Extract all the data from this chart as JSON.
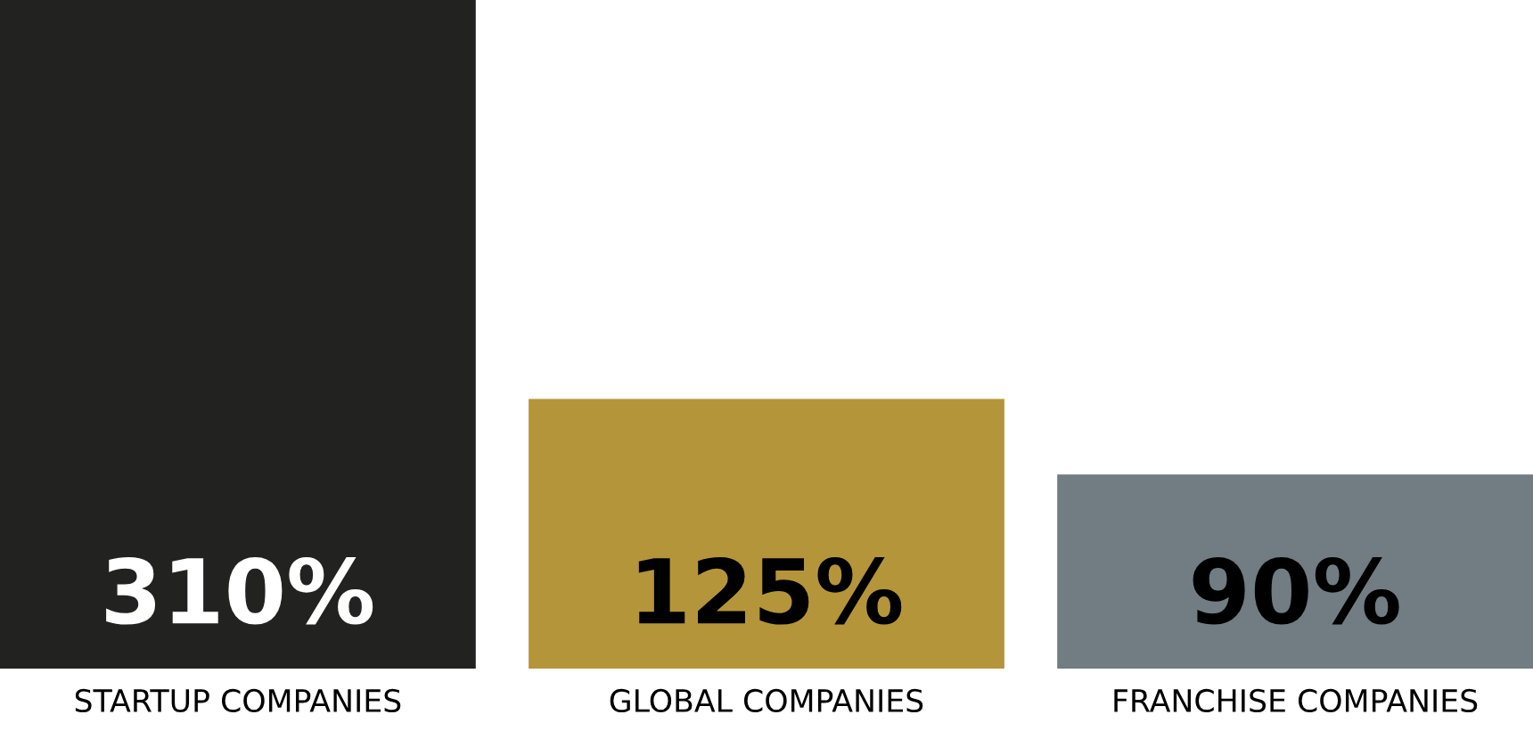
{
  "chart_data": {
    "type": "bar",
    "categories": [
      "STARTUP COMPANIES",
      "GLOBAL COMPANIES",
      "FRANCHISE COMPANIES"
    ],
    "values": [
      310,
      125,
      90
    ],
    "value_labels": [
      "310%",
      "125%",
      "90%"
    ],
    "colors": [
      "#222220",
      "#b5953a",
      "#717c83"
    ],
    "ylim": [
      0,
      310
    ],
    "tick_labels": "x",
    "grid": false,
    "legend": false
  }
}
